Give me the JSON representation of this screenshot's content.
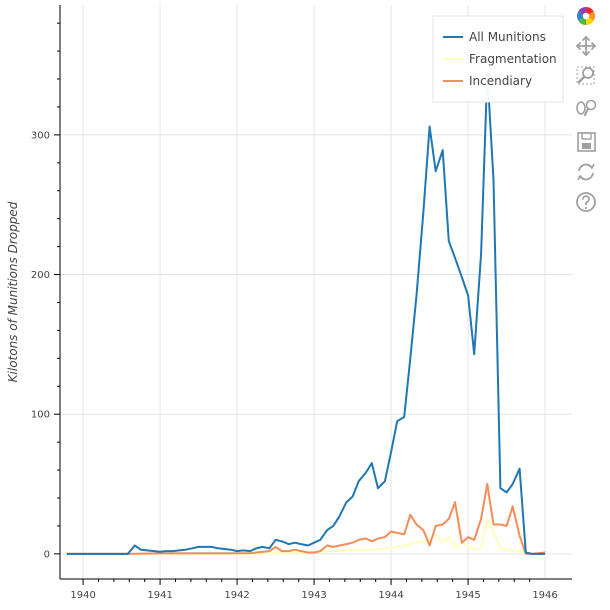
{
  "chart_data": {
    "type": "line",
    "title": "",
    "xlabel": "",
    "ylabel": "Kilotons of Munitions Dropped",
    "xlim": [
      1939.7,
      1946.35
    ],
    "ylim": [
      -18,
      393
    ],
    "x_ticks": [
      {
        "value": 1940,
        "label": "1940"
      },
      {
        "value": 1941,
        "label": "1941"
      },
      {
        "value": 1942,
        "label": "1942"
      },
      {
        "value": 1943,
        "label": "1943"
      },
      {
        "value": 1944,
        "label": "1944"
      },
      {
        "value": 1945,
        "label": "1945"
      },
      {
        "value": 1946,
        "label": "1946"
      }
    ],
    "y_ticks": [
      {
        "value": 0,
        "label": "0"
      },
      {
        "value": 100,
        "label": "100"
      },
      {
        "value": 200,
        "label": "200"
      },
      {
        "value": 300,
        "label": "300"
      }
    ],
    "grid": true,
    "legend_position": "top-right",
    "series": [
      {
        "name": "All Munitions",
        "color": "#1f77b4",
        "points": [
          [
            1939.79,
            0
          ],
          [
            1940,
            0
          ],
          [
            1940.25,
            0
          ],
          [
            1940.5,
            0
          ],
          [
            1940.58,
            0
          ],
          [
            1940.67,
            6
          ],
          [
            1940.75,
            3
          ],
          [
            1940.83,
            2.5
          ],
          [
            1940.92,
            2
          ],
          [
            1941,
            1.5
          ],
          [
            1941.08,
            2
          ],
          [
            1941.17,
            2
          ],
          [
            1941.25,
            2.5
          ],
          [
            1941.33,
            3
          ],
          [
            1941.42,
            4
          ],
          [
            1941.5,
            5
          ],
          [
            1941.58,
            5
          ],
          [
            1941.67,
            5
          ],
          [
            1941.75,
            4
          ],
          [
            1941.83,
            3.5
          ],
          [
            1941.92,
            3
          ],
          [
            1942,
            2
          ],
          [
            1942.08,
            2.5
          ],
          [
            1942.17,
            2
          ],
          [
            1942.25,
            4
          ],
          [
            1942.33,
            5
          ],
          [
            1942.42,
            4
          ],
          [
            1942.5,
            10
          ],
          [
            1942.58,
            9
          ],
          [
            1942.67,
            7
          ],
          [
            1942.75,
            8
          ],
          [
            1942.83,
            7
          ],
          [
            1942.92,
            6
          ],
          [
            1943,
            8
          ],
          [
            1943.08,
            10
          ],
          [
            1943.17,
            17
          ],
          [
            1943.25,
            20
          ],
          [
            1943.33,
            27
          ],
          [
            1943.42,
            37
          ],
          [
            1943.5,
            41
          ],
          [
            1943.58,
            52
          ],
          [
            1943.67,
            58
          ],
          [
            1943.75,
            65
          ],
          [
            1943.83,
            47
          ],
          [
            1943.92,
            52
          ],
          [
            1944,
            73
          ],
          [
            1944.08,
            95
          ],
          [
            1944.17,
            98
          ],
          [
            1944.25,
            140
          ],
          [
            1944.33,
            185
          ],
          [
            1944.42,
            245
          ],
          [
            1944.5,
            306
          ],
          [
            1944.58,
            274
          ],
          [
            1944.67,
            289
          ],
          [
            1944.75,
            224
          ],
          [
            1944.83,
            212
          ],
          [
            1944.92,
            198
          ],
          [
            1945,
            185
          ],
          [
            1945.08,
            143
          ],
          [
            1945.17,
            215
          ],
          [
            1945.25,
            345
          ],
          [
            1945.33,
            268
          ],
          [
            1945.42,
            47
          ],
          [
            1945.5,
            44
          ],
          [
            1945.58,
            50
          ],
          [
            1945.67,
            61
          ],
          [
            1945.75,
            1
          ],
          [
            1945.83,
            0
          ],
          [
            1946,
            0
          ]
        ]
      },
      {
        "name": "Fragmentation",
        "color": "#ffffbf",
        "points": [
          [
            1939.79,
            0
          ],
          [
            1942,
            0
          ],
          [
            1942.5,
            0.5
          ],
          [
            1943,
            1
          ],
          [
            1943.25,
            2
          ],
          [
            1943.5,
            3
          ],
          [
            1943.75,
            3
          ],
          [
            1944,
            4
          ],
          [
            1944.17,
            6
          ],
          [
            1944.33,
            8
          ],
          [
            1944.5,
            10
          ],
          [
            1944.58,
            14
          ],
          [
            1944.67,
            8
          ],
          [
            1944.75,
            12
          ],
          [
            1944.83,
            4
          ],
          [
            1944.92,
            8
          ],
          [
            1945,
            6
          ],
          [
            1945.08,
            3
          ],
          [
            1945.17,
            4
          ],
          [
            1945.25,
            25
          ],
          [
            1945.33,
            16
          ],
          [
            1945.42,
            4
          ],
          [
            1945.5,
            3
          ],
          [
            1945.58,
            2
          ],
          [
            1945.67,
            2
          ],
          [
            1945.75,
            0
          ],
          [
            1946,
            0
          ]
        ]
      },
      {
        "name": "Incendiary",
        "color": "#f58d57",
        "points": [
          [
            1939.79,
            0
          ],
          [
            1940,
            0
          ],
          [
            1940.5,
            0
          ],
          [
            1941,
            0.3
          ],
          [
            1941.5,
            0.5
          ],
          [
            1942,
            0.5
          ],
          [
            1942.17,
            0.5
          ],
          [
            1942.25,
            1
          ],
          [
            1942.42,
            2
          ],
          [
            1942.5,
            5
          ],
          [
            1942.58,
            2
          ],
          [
            1942.67,
            2
          ],
          [
            1942.75,
            3
          ],
          [
            1942.83,
            2
          ],
          [
            1942.92,
            1
          ],
          [
            1943,
            1
          ],
          [
            1943.08,
            2
          ],
          [
            1943.17,
            6
          ],
          [
            1943.25,
            5
          ],
          [
            1943.33,
            6
          ],
          [
            1943.42,
            7
          ],
          [
            1943.5,
            8
          ],
          [
            1943.58,
            10
          ],
          [
            1943.67,
            11
          ],
          [
            1943.75,
            9
          ],
          [
            1943.83,
            11
          ],
          [
            1943.92,
            12
          ],
          [
            1944,
            16
          ],
          [
            1944.08,
            15
          ],
          [
            1944.17,
            14
          ],
          [
            1944.25,
            28
          ],
          [
            1944.33,
            21
          ],
          [
            1944.42,
            17
          ],
          [
            1944.5,
            6
          ],
          [
            1944.58,
            20
          ],
          [
            1944.67,
            21
          ],
          [
            1944.75,
            25
          ],
          [
            1944.83,
            37
          ],
          [
            1944.92,
            8
          ],
          [
            1945,
            12
          ],
          [
            1945.08,
            10
          ],
          [
            1945.17,
            25
          ],
          [
            1945.25,
            50
          ],
          [
            1945.33,
            21
          ],
          [
            1945.42,
            21
          ],
          [
            1945.5,
            20
          ],
          [
            1945.58,
            34
          ],
          [
            1945.67,
            13
          ],
          [
            1945.75,
            0
          ],
          [
            1945.83,
            0
          ],
          [
            1946,
            1
          ]
        ]
      }
    ]
  },
  "toolbar": {
    "logo": "bokeh-logo-icon",
    "tools": [
      "pan-icon",
      "box-zoom-icon",
      "wheel-zoom-icon",
      "save-icon",
      "reset-icon",
      "help-icon"
    ],
    "active_color": "#26aae1",
    "icon_color": "#a0a0a0"
  }
}
